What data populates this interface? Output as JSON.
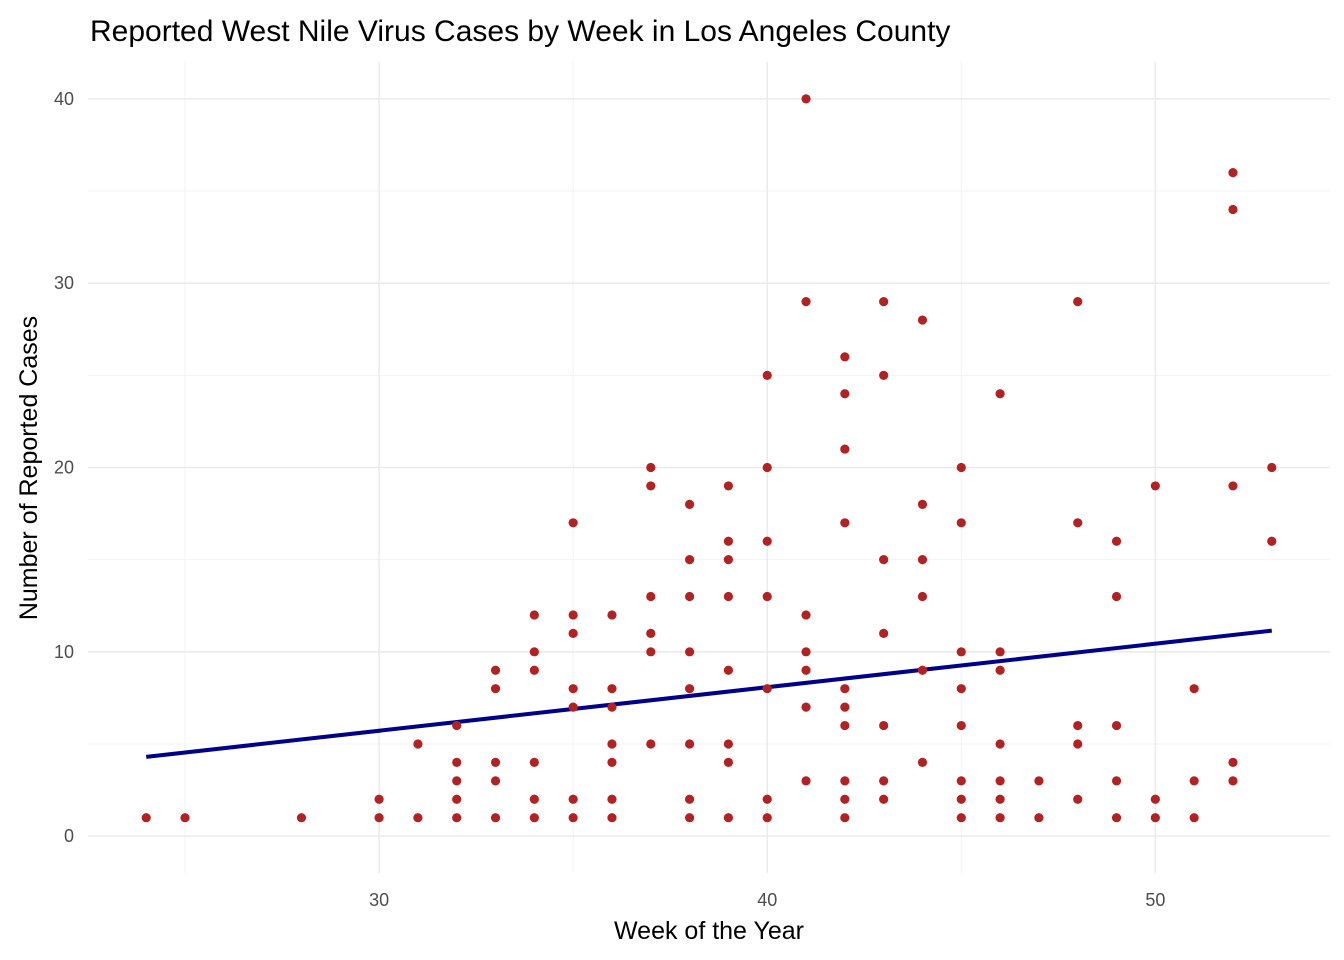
{
  "chart_data": {
    "type": "scatter",
    "title": "Reported West Nile Virus Cases by Week in Los Angeles County",
    "xlabel": "Week of the Year",
    "ylabel": "Number of Reported Cases",
    "xlim": [
      22.5,
      54.5
    ],
    "ylim": [
      -2,
      42
    ],
    "x_ticks": [
      30,
      40,
      50
    ],
    "y_ticks": [
      0,
      10,
      20,
      30,
      40
    ],
    "x_tick_labels": [
      "30",
      "40",
      "50"
    ],
    "y_tick_labels": [
      "0",
      "10",
      "20",
      "30",
      "40"
    ],
    "grid": true,
    "legend": "none",
    "point_color": "#b22222",
    "trend_color": "#00008b",
    "points": [
      [
        24,
        1
      ],
      [
        25,
        1
      ],
      [
        28,
        1
      ],
      [
        30,
        1
      ],
      [
        30,
        2
      ],
      [
        31,
        1
      ],
      [
        31,
        5
      ],
      [
        32,
        1
      ],
      [
        32,
        2
      ],
      [
        32,
        3
      ],
      [
        32,
        4
      ],
      [
        32,
        6
      ],
      [
        33,
        1
      ],
      [
        33,
        3
      ],
      [
        33,
        4
      ],
      [
        33,
        8
      ],
      [
        33,
        9
      ],
      [
        34,
        1
      ],
      [
        34,
        2
      ],
      [
        34,
        4
      ],
      [
        34,
        9
      ],
      [
        34,
        10
      ],
      [
        34,
        12
      ],
      [
        35,
        1
      ],
      [
        35,
        2
      ],
      [
        35,
        7
      ],
      [
        35,
        8
      ],
      [
        35,
        11
      ],
      [
        35,
        12
      ],
      [
        35,
        17
      ],
      [
        36,
        1
      ],
      [
        36,
        2
      ],
      [
        36,
        4
      ],
      [
        36,
        5
      ],
      [
        36,
        7
      ],
      [
        36,
        8
      ],
      [
        36,
        12
      ],
      [
        37,
        5
      ],
      [
        37,
        10
      ],
      [
        37,
        11
      ],
      [
        37,
        13
      ],
      [
        37,
        19
      ],
      [
        37,
        20
      ],
      [
        38,
        1
      ],
      [
        38,
        2
      ],
      [
        38,
        5
      ],
      [
        38,
        8
      ],
      [
        38,
        10
      ],
      [
        38,
        13
      ],
      [
        38,
        15
      ],
      [
        38,
        18
      ],
      [
        39,
        1
      ],
      [
        39,
        4
      ],
      [
        39,
        5
      ],
      [
        39,
        9
      ],
      [
        39,
        13
      ],
      [
        39,
        15
      ],
      [
        39,
        16
      ],
      [
        39,
        19
      ],
      [
        40,
        1
      ],
      [
        40,
        2
      ],
      [
        40,
        8
      ],
      [
        40,
        13
      ],
      [
        40,
        16
      ],
      [
        40,
        20
      ],
      [
        40,
        25
      ],
      [
        41,
        3
      ],
      [
        41,
        7
      ],
      [
        41,
        9
      ],
      [
        41,
        10
      ],
      [
        41,
        12
      ],
      [
        41,
        29
      ],
      [
        41,
        40
      ],
      [
        42,
        1
      ],
      [
        42,
        2
      ],
      [
        42,
        3
      ],
      [
        42,
        6
      ],
      [
        42,
        7
      ],
      [
        42,
        8
      ],
      [
        42,
        17
      ],
      [
        42,
        21
      ],
      [
        42,
        24
      ],
      [
        42,
        26
      ],
      [
        43,
        2
      ],
      [
        43,
        3
      ],
      [
        43,
        6
      ],
      [
        43,
        11
      ],
      [
        43,
        15
      ],
      [
        43,
        25
      ],
      [
        43,
        29
      ],
      [
        44,
        4
      ],
      [
        44,
        9
      ],
      [
        44,
        13
      ],
      [
        44,
        15
      ],
      [
        44,
        18
      ],
      [
        44,
        28
      ],
      [
        45,
        1
      ],
      [
        45,
        2
      ],
      [
        45,
        3
      ],
      [
        45,
        6
      ],
      [
        45,
        8
      ],
      [
        45,
        10
      ],
      [
        45,
        17
      ],
      [
        45,
        20
      ],
      [
        46,
        1
      ],
      [
        46,
        2
      ],
      [
        46,
        3
      ],
      [
        46,
        5
      ],
      [
        46,
        9
      ],
      [
        46,
        10
      ],
      [
        46,
        24
      ],
      [
        47,
        1
      ],
      [
        47,
        3
      ],
      [
        48,
        2
      ],
      [
        48,
        5
      ],
      [
        48,
        6
      ],
      [
        48,
        17
      ],
      [
        48,
        29
      ],
      [
        49,
        1
      ],
      [
        49,
        3
      ],
      [
        49,
        6
      ],
      [
        49,
        13
      ],
      [
        49,
        16
      ],
      [
        50,
        1
      ],
      [
        50,
        2
      ],
      [
        50,
        19
      ],
      [
        51,
        1
      ],
      [
        51,
        3
      ],
      [
        51,
        8
      ],
      [
        52,
        3
      ],
      [
        52,
        4
      ],
      [
        52,
        19
      ],
      [
        52,
        34
      ],
      [
        52,
        36
      ],
      [
        53,
        16
      ],
      [
        53,
        20
      ]
    ],
    "trend_line": {
      "x": [
        24,
        53
      ],
      "y": [
        4.3,
        11.15
      ]
    }
  }
}
